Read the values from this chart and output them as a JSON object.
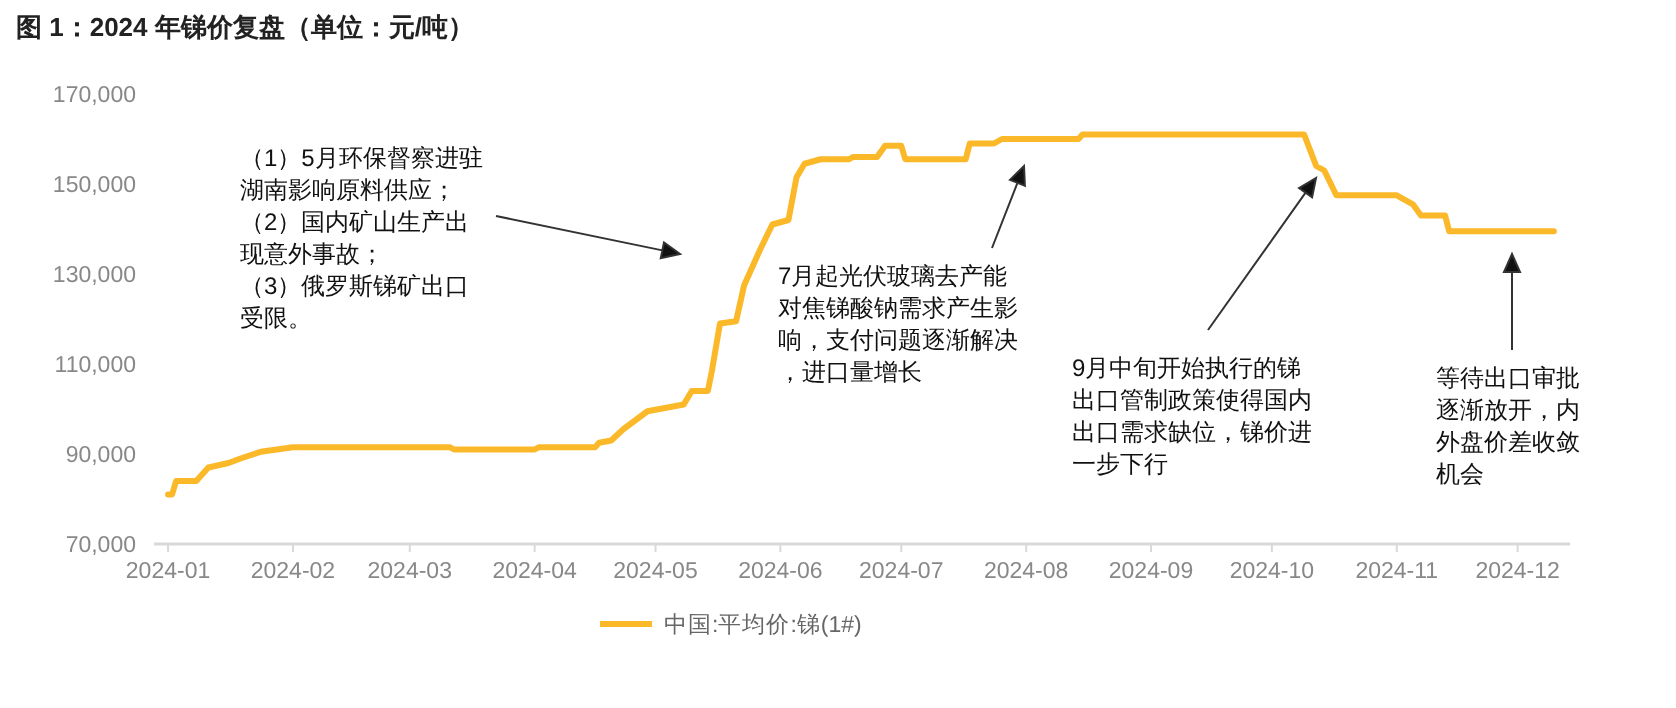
{
  "chart_data": {
    "type": "line",
    "title": "图 1：2024 年锑价复盘（单位：元/吨）",
    "xlim": [
      "2023-12-30",
      "2024-12-14"
    ],
    "ylim": [
      70000,
      170000
    ],
    "yticks": [
      {
        "value": 70000,
        "label": "70,000"
      },
      {
        "value": 90000,
        "label": "90,000"
      },
      {
        "value": 110000,
        "label": "110,000"
      },
      {
        "value": 130000,
        "label": "130,000"
      },
      {
        "value": 150000,
        "label": "150,000"
      },
      {
        "value": 170000,
        "label": "170,000"
      }
    ],
    "xticks": [
      {
        "value": "2024-01-01",
        "label": "2024-01"
      },
      {
        "value": "2024-02-01",
        "label": "2024-02"
      },
      {
        "value": "2024-03-01",
        "label": "2024-03"
      },
      {
        "value": "2024-04-01",
        "label": "2024-04"
      },
      {
        "value": "2024-05-01",
        "label": "2024-05"
      },
      {
        "value": "2024-06-01",
        "label": "2024-06"
      },
      {
        "value": "2024-07-01",
        "label": "2024-07"
      },
      {
        "value": "2024-08-01",
        "label": "2024-08"
      },
      {
        "value": "2024-09-01",
        "label": "2024-09"
      },
      {
        "value": "2024-10-01",
        "label": "2024-10"
      },
      {
        "value": "2024-11-01",
        "label": "2024-11"
      },
      {
        "value": "2024-12-01",
        "label": "2024-12"
      }
    ],
    "grid": false,
    "legend": "bottom",
    "marker": "none",
    "line_style": "solid",
    "series": [
      {
        "name": "中国:平均价:锑(1#)",
        "color": "#fbb829",
        "x": [
          "2024-01-01",
          "2024-01-02",
          "2024-01-03",
          "2024-01-08",
          "2024-01-11",
          "2024-01-16",
          "2024-01-19",
          "2024-01-24",
          "2024-02-01",
          "2024-03-11",
          "2024-03-12",
          "2024-04-01",
          "2024-04-02",
          "2024-04-16",
          "2024-04-17",
          "2024-04-20",
          "2024-04-23",
          "2024-04-29",
          "2024-05-08",
          "2024-05-10",
          "2024-05-14",
          "2024-05-15",
          "2024-05-17",
          "2024-05-21",
          "2024-05-23",
          "2024-05-27",
          "2024-05-30",
          "2024-06-03",
          "2024-06-05",
          "2024-06-07",
          "2024-06-11",
          "2024-06-18",
          "2024-06-19",
          "2024-06-25",
          "2024-06-27",
          "2024-07-01",
          "2024-07-02",
          "2024-07-17",
          "2024-07-18",
          "2024-07-24",
          "2024-07-26",
          "2024-08-14",
          "2024-08-15",
          "2024-10-09",
          "2024-10-12",
          "2024-10-14",
          "2024-10-17",
          "2024-11-01",
          "2024-11-05",
          "2024-11-07",
          "2024-11-13",
          "2024-11-14",
          "2024-12-10"
        ],
        "values": [
          81000,
          81000,
          84000,
          84000,
          87000,
          88000,
          89000,
          90500,
          91500,
          91500,
          91000,
          91000,
          91500,
          91500,
          92500,
          93000,
          95500,
          99500,
          101000,
          104000,
          104000,
          108500,
          119000,
          119500,
          127500,
          135500,
          141000,
          142000,
          151500,
          154500,
          155500,
          155500,
          156000,
          156000,
          158500,
          158500,
          155500,
          155500,
          159000,
          159000,
          160000,
          160000,
          161000,
          161000,
          154000,
          153000,
          147500,
          147500,
          145500,
          143000,
          143000,
          139500,
          139500
        ]
      }
    ],
    "annotations": [
      "（1）5月环保督察进驻湖南影响原料供应；（2）国内矿山生产出现意外事故；（3）俄罗斯锑矿出口受限。",
      "7月起光伏玻璃去产能对焦锑酸钠需求产生影响，支付问题逐渐解决，进口量增长",
      "9月中旬开始执行的锑出口管制政策使得国内出口需求缺位，锑价进一步下行",
      "等待出口审批逐渐放开，内外盘价差收敛机会"
    ]
  }
}
